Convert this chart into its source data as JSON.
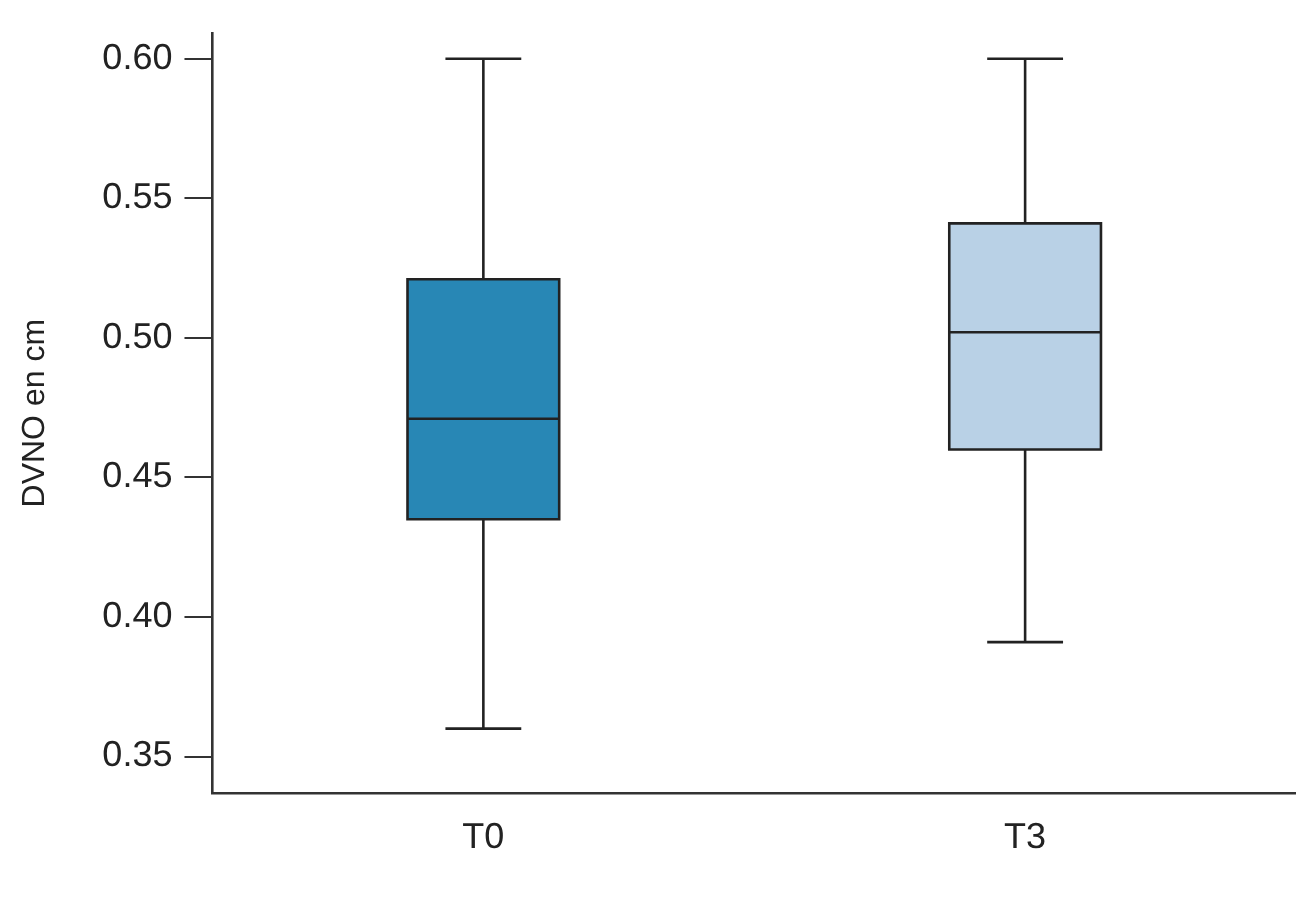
{
  "chart_data": {
    "type": "box",
    "ylabel": "DVNO en cm",
    "categories": [
      "T0",
      "T3"
    ],
    "boxes": [
      {
        "low": 0.36,
        "q1": 0.435,
        "median": 0.471,
        "q3": 0.521,
        "high": 0.6
      },
      {
        "low": 0.391,
        "q1": 0.46,
        "median": 0.502,
        "q3": 0.541,
        "high": 0.6
      }
    ],
    "colors": [
      "#2887b5",
      "#b9d1e6"
    ],
    "ylim": [
      0.337,
      0.609
    ],
    "yticks": [
      0.35,
      {
        "value": 0.4,
        "label": "0.40"
      },
      0.45,
      {
        "value": 0.5,
        "label": "0.50"
      },
      0.55,
      {
        "value": 0.6,
        "label": "0.60"
      }
    ],
    "grid": false,
    "legend": false
  }
}
